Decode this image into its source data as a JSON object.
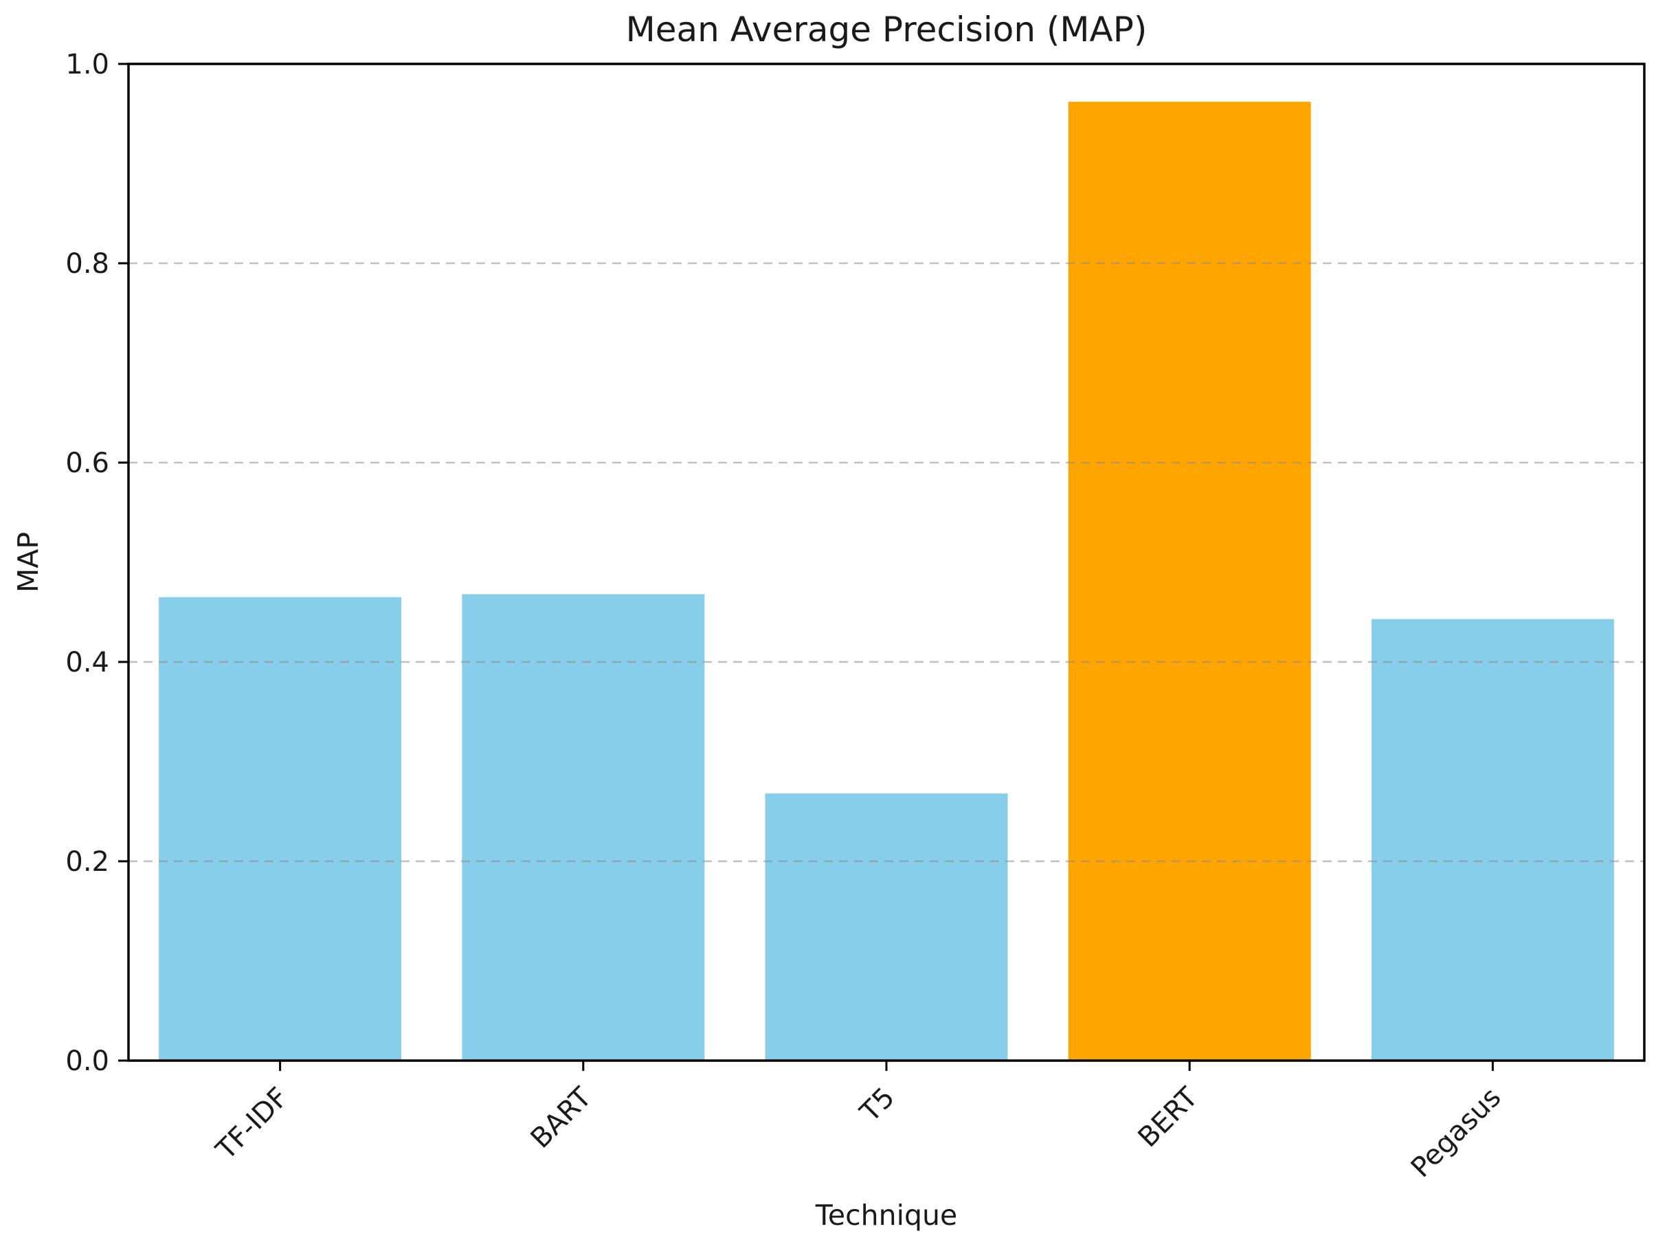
{
  "figure": {
    "background": "#ffffff"
  },
  "chart_data": {
    "type": "bar",
    "title": "Mean Average Precision (MAP)",
    "xlabel": "Technique",
    "ylabel": "MAP",
    "categories": [
      "TF-IDF",
      "BART",
      "T5",
      "BERT",
      "Pegasus"
    ],
    "values": [
      0.465,
      0.468,
      0.268,
      0.962,
      0.443
    ],
    "series": [
      {
        "name": "MAP",
        "values": [
          0.465,
          0.468,
          0.268,
          0.962,
          0.443
        ]
      }
    ],
    "bar_colors": [
      "#87CEEB",
      "#87CEEB",
      "#87CEEB",
      "#FFA500",
      "#87CEEB"
    ],
    "default_color": "#87CEEB",
    "highlight_category": "BERT",
    "highlight_color": "#FFA500",
    "ylim": [
      0.0,
      1.0
    ],
    "yticks": [
      0.0,
      0.2,
      0.4,
      0.6,
      0.8,
      1.0
    ],
    "ytick_labels": [
      "0.0",
      "0.2",
      "0.4",
      "0.6",
      "0.8",
      "1.0"
    ],
    "xtick_rotation_deg": 45,
    "grid": "horizontal-dashed",
    "grid_color": "#8c8c8c",
    "grid_opacity": 0.55,
    "axis_color": "#000000",
    "legend": "none",
    "bar_width_fraction": 0.8
  }
}
